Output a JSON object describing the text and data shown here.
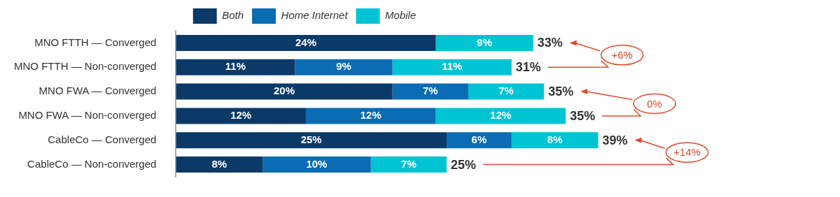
{
  "chart_data": {
    "type": "bar",
    "orientation": "horizontal",
    "stacked": true,
    "legend": "top",
    "grid": false,
    "categories": [
      "MNO FTTH — Converged",
      "MNO FTTH — Non-converged",
      "MNO FWA — Converged",
      "MNO FWA — Non-converged",
      "CableCo — Converged",
      "CableCo — Non-converged"
    ],
    "series": [
      {
        "name": "Both",
        "color": "#0b3a68",
        "values": [
          24,
          11,
          20,
          12,
          25,
          8
        ],
        "value_labels": [
          "24%",
          "11%",
          "20%",
          "12%",
          "25%",
          "8%"
        ]
      },
      {
        "name": "Home Internet",
        "color": "#0a6cb3",
        "values": [
          null,
          9,
          7,
          12,
          6,
          10
        ],
        "value_labels": [
          null,
          "9%",
          "7%",
          "12%",
          "6%",
          "10%"
        ]
      },
      {
        "name": "Mobile",
        "color": "#00c4d3",
        "values": [
          9,
          11,
          7,
          12,
          8,
          7
        ],
        "value_labels": [
          "9%",
          "11%",
          "7%",
          "12%",
          "8%",
          "7%"
        ]
      }
    ],
    "totals": [
      "33%",
      "31%",
      "35%",
      "35%",
      "39%",
      "25%"
    ],
    "annotations": [
      "+6%",
      "0%",
      "+14%"
    ]
  }
}
